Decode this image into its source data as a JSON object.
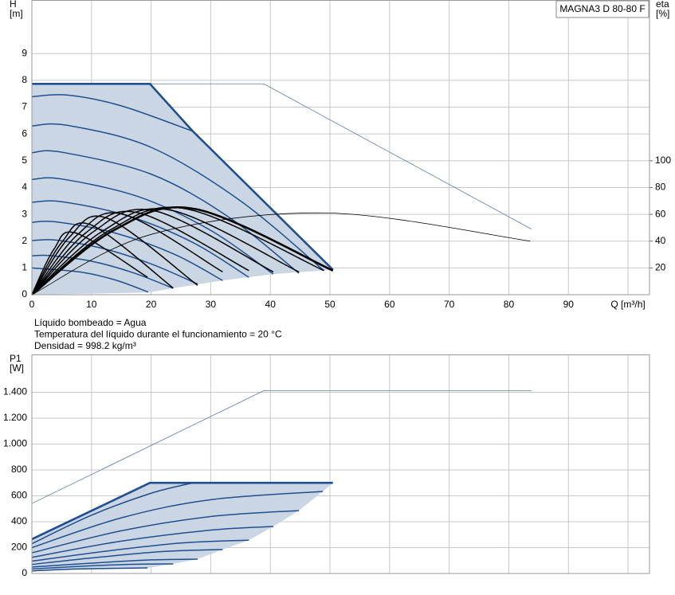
{
  "chart_data": [
    {
      "type": "line",
      "ylabel": [
        "H",
        "[m]"
      ],
      "y2label": [
        "eta",
        "[%]"
      ],
      "model": "MAGNA3 D 80-80 F",
      "notes": [
        "Líquido bombeado = Agua",
        "Temperatura del líquido durante el funcionamiento = 20 °C",
        "Densidad = 998.2 kg/m³"
      ],
      "xlim": [
        0,
        103.6
      ],
      "xticks": [
        0,
        10,
        20,
        30,
        40,
        50,
        60,
        70,
        80,
        90,
        {
          "value": 100,
          "label": "Q [m³/h]"
        }
      ],
      "ylim": [
        0,
        11
      ],
      "yticks": [
        0,
        1,
        2,
        3,
        4,
        5,
        6,
        7,
        8,
        9
      ],
      "y2lim": [
        0,
        220
      ],
      "y2ticks": [
        20,
        40,
        60,
        80,
        100
      ],
      "grid": true,
      "areas": [
        {
          "color": "#cbd6e4",
          "x": [
            0,
            19.8,
            27,
            50.5,
            40.5,
            32,
            23.7,
            19.5,
            0
          ],
          "values": [
            7.87,
            7.87,
            6.1,
            0.93,
            0.77,
            0.53,
            0.24,
            0.08,
            0
          ]
        }
      ],
      "series": [
        {
          "color": "#5b7bab",
          "weight": "thin",
          "smooth": false,
          "x": [
            19.8,
            38.9,
            83.8
          ],
          "values": [
            7.87,
            7.87,
            2.45
          ]
        },
        {
          "color": "#1f4f8f",
          "weight": "normal",
          "smooth": true,
          "x": [
            0,
            6,
            15,
            27
          ],
          "values": [
            7.39,
            7.45,
            7.05,
            6.1
          ]
        },
        {
          "color": "#1f4f8f",
          "weight": "normal",
          "smooth": true,
          "x": [
            0,
            6,
            20,
            35,
            49
          ],
          "values": [
            6.3,
            6.32,
            5.5,
            3.5,
            0.9
          ]
        },
        {
          "color": "#1f4f8f",
          "weight": "normal",
          "smooth": true,
          "x": [
            0,
            5,
            20,
            33,
            44.8
          ],
          "values": [
            5.3,
            5.32,
            4.5,
            2.9,
            0.8
          ]
        },
        {
          "color": "#1f4f8f",
          "weight": "normal",
          "smooth": true,
          "x": [
            0,
            5,
            18,
            30,
            40.5
          ],
          "values": [
            4.3,
            4.32,
            3.65,
            2.4,
            0.77
          ]
        },
        {
          "color": "#1f4f8f",
          "weight": "normal",
          "smooth": true,
          "x": [
            0,
            5,
            16,
            27,
            36.4
          ],
          "values": [
            3.45,
            3.47,
            2.95,
            1.95,
            0.65
          ]
        },
        {
          "color": "#1f4f8f",
          "weight": "normal",
          "smooth": true,
          "x": [
            0,
            4,
            14,
            24,
            32
          ],
          "values": [
            2.7,
            2.72,
            2.3,
            1.5,
            0.53
          ]
        },
        {
          "color": "#1f4f8f",
          "weight": "normal",
          "smooth": true,
          "x": [
            0,
            4,
            12,
            20,
            27.8
          ],
          "values": [
            2.02,
            2.04,
            1.72,
            1.15,
            0.4
          ]
        },
        {
          "color": "#1f4f8f",
          "weight": "normal",
          "smooth": true,
          "x": [
            0,
            3,
            10,
            17,
            23.7
          ],
          "values": [
            1.45,
            1.46,
            1.25,
            0.82,
            0.24
          ]
        },
        {
          "color": "#1f4f8f",
          "weight": "normal",
          "smooth": true,
          "x": [
            0,
            8,
            14,
            19.5
          ],
          "values": [
            1.0,
            0.85,
            0.55,
            0.1
          ]
        },
        {
          "color": "#1f4f8f",
          "weight": "bold",
          "smooth": false,
          "x": [
            0,
            19.8,
            27,
            50.5
          ],
          "values": [
            7.87,
            7.87,
            6.1,
            0.93
          ]
        },
        {
          "color": "#000000",
          "weight": "thin",
          "smooth": true,
          "axis": "y2",
          "x": [
            0,
            20,
            49.5,
            83.6
          ],
          "values": [
            0,
            45,
            61,
            40
          ]
        },
        {
          "color": "#000000",
          "weight": "normal",
          "smooth": true,
          "axis": "y2",
          "x": [
            0,
            3.7,
            7.4,
            19.4
          ],
          "values": [
            0,
            34,
            46,
            13
          ]
        },
        {
          "color": "#000000",
          "weight": "normal",
          "smooth": true,
          "axis": "y2",
          "x": [
            0,
            5,
            10,
            23.7
          ],
          "values": [
            0,
            39,
            52,
            5
          ]
        },
        {
          "color": "#000000",
          "weight": "normal",
          "smooth": true,
          "axis": "y2",
          "x": [
            0,
            6.3,
            12.7,
            27.8
          ],
          "values": [
            0,
            43,
            57,
            7
          ]
        },
        {
          "color": "#000000",
          "weight": "normal",
          "smooth": true,
          "axis": "y2",
          "x": [
            0,
            7.7,
            15.4,
            32
          ],
          "values": [
            0,
            45,
            60,
            17
          ]
        },
        {
          "color": "#000000",
          "weight": "normal",
          "smooth": true,
          "axis": "y2",
          "x": [
            0,
            9,
            18,
            36.4
          ],
          "values": [
            0,
            46,
            61,
            18
          ]
        },
        {
          "color": "#000000",
          "weight": "normal",
          "smooth": true,
          "axis": "y2",
          "x": [
            0,
            10.3,
            20.7,
            40.5
          ],
          "values": [
            0,
            47,
            62.5,
            17
          ]
        },
        {
          "color": "#000000",
          "weight": "normal",
          "smooth": true,
          "axis": "y2",
          "x": [
            0,
            11.7,
            23.4,
            44.8
          ],
          "values": [
            0,
            47,
            63,
            17
          ]
        },
        {
          "color": "#000000",
          "weight": "normal",
          "smooth": true,
          "axis": "y2",
          "x": [
            0,
            13,
            26,
            49
          ],
          "values": [
            0,
            48,
            64,
            18
          ]
        },
        {
          "color": "#000000",
          "weight": "bold",
          "smooth": true,
          "axis": "y2",
          "x": [
            0,
            13.7,
            27.4,
            50.5
          ],
          "values": [
            0,
            48,
            64,
            18
          ]
        }
      ]
    },
    {
      "type": "line",
      "ylabel": [
        "P1",
        "[W]"
      ],
      "xlim": [
        0,
        103.6
      ],
      "ylim": [
        0,
        1692
      ],
      "yticks": [
        0,
        200,
        400,
        600,
        800,
        {
          "value": 1000,
          "label": "1.000"
        },
        {
          "value": 1200,
          "label": "1.200"
        },
        {
          "value": 1400,
          "label": "1.400"
        }
      ],
      "grid": true,
      "areas": [
        {
          "color": "#cbd6e4",
          "x": [
            0,
            19.8,
            50.5,
            48.8,
            44.8,
            40.5,
            36.4,
            32,
            27.8,
            23.7,
            19.4,
            0
          ],
          "values": [
            265,
            700,
            700,
            634,
            486,
            363,
            258,
            185,
            111,
            74,
            43,
            20
          ]
        }
      ],
      "series": [
        {
          "color": "#5b7bab",
          "weight": "thin",
          "smooth": false,
          "x": [
            0,
            38.9,
            83.8
          ],
          "values": [
            541,
            1412,
            1412
          ]
        },
        {
          "color": "#1f4f8f",
          "weight": "normal",
          "smooth": true,
          "x": [
            0,
            10,
            20,
            27
          ],
          "values": [
            230,
            450,
            620,
            700
          ]
        },
        {
          "color": "#1f4f8f",
          "weight": "normal",
          "smooth": true,
          "x": [
            0,
            15,
            30,
            48.8
          ],
          "values": [
            200,
            430,
            570,
            634
          ]
        },
        {
          "color": "#1f4f8f",
          "weight": "normal",
          "smooth": true,
          "x": [
            0,
            15,
            30,
            44.8
          ],
          "values": [
            160,
            330,
            440,
            486
          ]
        },
        {
          "color": "#1f4f8f",
          "weight": "normal",
          "smooth": true,
          "x": [
            0,
            15,
            30,
            40.5
          ],
          "values": [
            125,
            250,
            335,
            363
          ]
        },
        {
          "color": "#1f4f8f",
          "weight": "normal",
          "smooth": true,
          "x": [
            0,
            12,
            25,
            36.4
          ],
          "values": [
            95,
            170,
            235,
            258
          ]
        },
        {
          "color": "#1f4f8f",
          "weight": "normal",
          "smooth": true,
          "x": [
            0,
            10,
            22,
            32
          ],
          "values": [
            70,
            120,
            170,
            185
          ]
        },
        {
          "color": "#1f4f8f",
          "weight": "normal",
          "smooth": true,
          "x": [
            0,
            10,
            20,
            27.8
          ],
          "values": [
            50,
            80,
            105,
            111
          ]
        },
        {
          "color": "#1f4f8f",
          "weight": "normal",
          "smooth": true,
          "x": [
            0,
            8,
            16,
            23.7
          ],
          "values": [
            35,
            55,
            70,
            74
          ]
        },
        {
          "color": "#1f4f8f",
          "weight": "normal",
          "smooth": true,
          "x": [
            0,
            8,
            19.4
          ],
          "values": [
            20,
            35,
            43
          ]
        },
        {
          "color": "#1f4f8f",
          "weight": "bold",
          "smooth": false,
          "x": [
            0,
            19.8,
            50.5
          ],
          "values": [
            265,
            700,
            700
          ]
        }
      ]
    }
  ]
}
